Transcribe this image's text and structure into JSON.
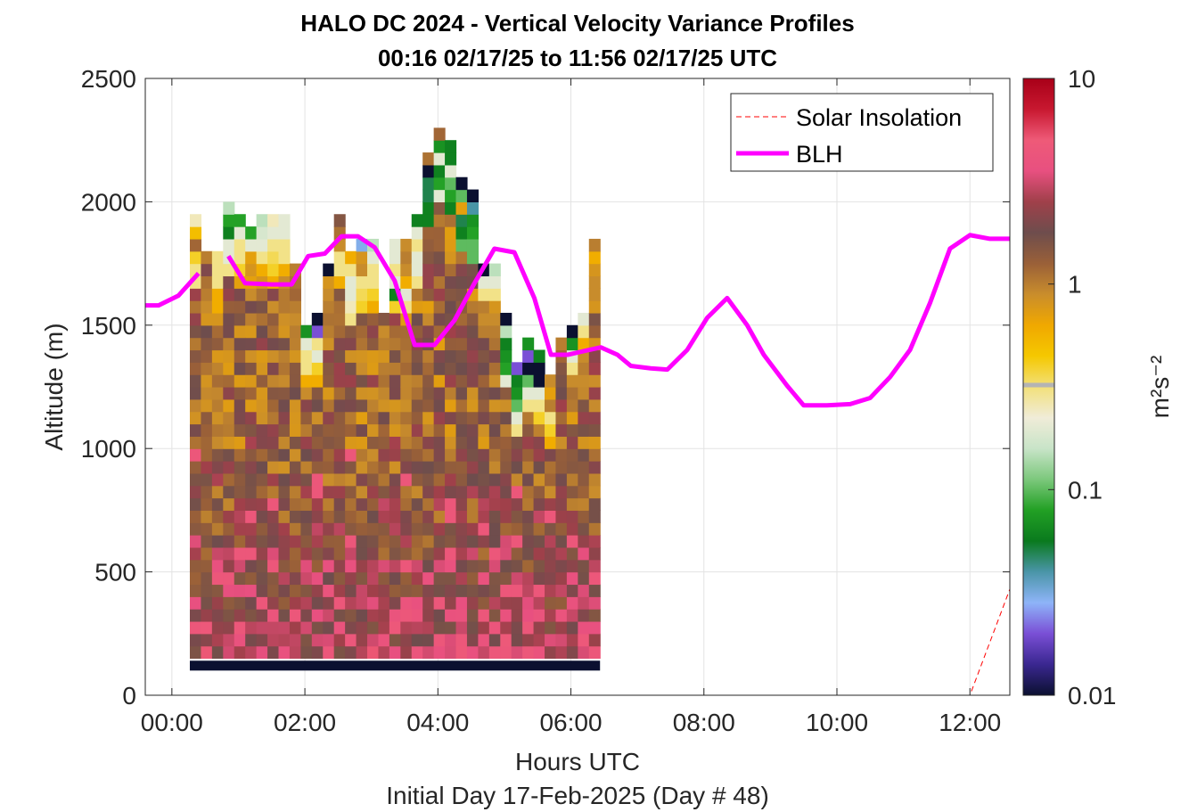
{
  "chart_data": {
    "type": "heatmap",
    "title": "HALO DC 2024 - Vertical Velocity Variance Profiles",
    "subtitle": "00:16 02/17/25 to 11:56 02/17/25  UTC",
    "xlabel": "Hours UTC",
    "xlabel2": "Initial Day 17-Feb-2025 (Day # 48)",
    "ylabel": "Altitude (m)",
    "colorbar_label": "m²s⁻²",
    "xlim": [
      -0.4,
      12.6
    ],
    "ylim": [
      0,
      2500
    ],
    "x_ticks": [
      0,
      2,
      4,
      6,
      8,
      10,
      12
    ],
    "x_tick_labels": [
      "00:00",
      "02:00",
      "04:00",
      "06:00",
      "08:00",
      "10:00",
      "12:00"
    ],
    "y_ticks": [
      0,
      500,
      1000,
      1500,
      2000,
      2500
    ],
    "y_tick_labels": [
      "0",
      "500",
      "1000",
      "1500",
      "2000",
      "2500"
    ],
    "colorbar": {
      "scale": "log",
      "range": [
        0.01,
        10
      ],
      "ticks": [
        0.01,
        0.1,
        1,
        10
      ],
      "tick_labels": [
        "0.01",
        "0.1",
        "1",
        "10"
      ],
      "stops": [
        "#0b1030",
        "#3a2790",
        "#7a4fd6",
        "#8eb4f8",
        "#4a95a8",
        "#0a7a1e",
        "#22a024",
        "#7cc87c",
        "#c8e4c8",
        "#f0ecd8",
        "#f2e07a",
        "#f5c800",
        "#f0a800",
        "#c98d2c",
        "#9a6038",
        "#6e4d4d",
        "#a0404a",
        "#e85080",
        "#ee5a78",
        "#c81830",
        "#a80018"
      ]
    },
    "legend": {
      "placement": "top-right",
      "entries": [
        {
          "label": "Solar Insolation",
          "color": "#ff0000",
          "style": "dashed"
        },
        {
          "label": "BLH",
          "color": "#ff00ff",
          "style": "solid"
        }
      ]
    },
    "grid": true,
    "heatmap": {
      "time_start": 0.27,
      "time_step": 0.1667,
      "altitude_step": 50,
      "ground_band_alt": [
        100,
        140
      ],
      "ground_band_value": 0.01,
      "columns": [
        {
          "top": 1930,
          "tops": [
            0.25,
            0.5,
            1.2,
            0.4,
            0.3,
            0.3
          ]
        },
        {
          "top": 1820,
          "tops": [
            1.0,
            2.0,
            1.1,
            1.0,
            0.9,
            0.8
          ]
        },
        {
          "top": 1820,
          "tops": [
            0.3,
            0.3,
            0.3,
            0.6,
            0.6,
            0.8
          ]
        },
        {
          "top": 2010,
          "tops": [
            0.15,
            0.08,
            0.06,
            0.2,
            0.2,
            0.3
          ]
        },
        {
          "top": 1930,
          "tops": [
            0.08,
            0.2,
            0.3,
            0.3,
            0.4,
            0.7
          ]
        },
        {
          "top": 1920,
          "tops": [
            0.08,
            0.2,
            0.7,
            0.8,
            0.7,
            0.9
          ]
        },
        {
          "top": 1930,
          "tops": [
            0.15,
            0.18,
            0.2,
            0.3,
            0.6,
            0.8
          ]
        },
        {
          "top": 1960,
          "tops": [
            0.25,
            0.2,
            0.3,
            0.35,
            0.4,
            0.6
          ]
        },
        {
          "top": 1930,
          "tops": [
            0.2,
            0.2,
            0.3,
            0.3,
            0.6,
            0.9
          ]
        },
        {
          "top": 1770,
          "tops": [
            1.0,
            1.1,
            1.2,
            1.0,
            0.9,
            1.0
          ]
        },
        {
          "top": 1480,
          "tops": [
            0.07,
            0.2,
            0.3,
            0.3,
            0.6,
            0.9
          ]
        },
        {
          "top": 1560,
          "tops": [
            0.01,
            0.02,
            0.3,
            0.2,
            0.4,
            0.6
          ]
        },
        {
          "top": 1760,
          "tops": [
            0.01,
            0.8,
            0.9,
            1.0,
            1.1,
            1.0
          ]
        },
        {
          "top": 1930,
          "tops": [
            1.5,
            1.1,
            0.9,
            0.3,
            0.3,
            0.6
          ]
        },
        {
          "top": 1800,
          "tops": [
            0.6,
            0.3,
            0.2,
            0.2,
            0.25,
            0.3
          ]
        },
        {
          "top": 1860,
          "tops": [
            0.03,
            0.8,
            0.9,
            0.3,
            0.35,
            0.4
          ]
        },
        {
          "top": 1860,
          "tops": [
            0.15,
            0.2,
            0.3,
            0.3,
            0.4,
            0.6
          ]
        },
        {
          "top": 1560,
          "tops": [
            1.5,
            0.9,
            1.0,
            0.8,
            1.0,
            1.1
          ]
        },
        {
          "top": 1860,
          "tops": [
            0.2,
            0.2,
            0.3,
            0.2,
            0.06,
            0.4
          ]
        },
        {
          "top": 1850,
          "tops": [
            0.9,
            1.0,
            0.9,
            0.6,
            0.2,
            0.3
          ]
        },
        {
          "top": 1940,
          "tops": [
            0.06,
            0.2,
            0.3,
            0.2,
            0.2,
            0.3
          ]
        },
        {
          "top": 2180,
          "tops": [
            1.1,
            0.01,
            0.05,
            0.05,
            0.06,
            0.06
          ]
        },
        {
          "top": 2290,
          "tops": [
            1.2,
            0.07,
            0.2,
            0.06,
            0.08,
            0.2
          ]
        },
        {
          "top": 2250,
          "tops": [
            0.06,
            0.06,
            0.2,
            0.1,
            0.08,
            0.06
          ]
        },
        {
          "top": 2100,
          "tops": [
            0.01,
            0.1,
            0.7,
            0.05,
            0.06,
            0.1
          ]
        },
        {
          "top": 2050,
          "tops": [
            0.01,
            0.04,
            0.07,
            0.08,
            0.1,
            0.1
          ]
        },
        {
          "top": 1760,
          "tops": [
            0.01,
            0.2,
            0.3,
            1.0,
            0.9,
            1.0
          ]
        },
        {
          "top": 1760,
          "tops": [
            0.15,
            0.2,
            0.3,
            0.8,
            0.9,
            1.0
          ]
        },
        {
          "top": 1540,
          "tops": [
            0.01,
            0.15,
            0.06,
            0.07,
            0.08,
            0.2
          ]
        },
        {
          "top": 1340,
          "tops": [
            0.02,
            0.06,
            0.07,
            0.1,
            0.2,
            0.3
          ]
        },
        {
          "top": 1430,
          "tops": [
            0.07,
            0.02,
            0.01,
            0.1,
            0.2,
            0.3
          ]
        },
        {
          "top": 1420,
          "tops": [
            0.06,
            0.01,
            0.01,
            0.2,
            0.3,
            0.4
          ]
        },
        {
          "top": 1290,
          "tops": [
            0.9,
            0.7,
            1.0,
            0.3,
            0.4,
            0.6
          ]
        },
        {
          "top": 1430,
          "tops": [
            1.0,
            1.2,
            1.5,
            1.6,
            1.8,
            2.5
          ]
        },
        {
          "top": 1480,
          "tops": [
            0.01,
            0.07,
            0.2,
            0.3,
            0.9,
            1.1
          ]
        },
        {
          "top": 1570,
          "tops": [
            0.2,
            0.3,
            0.6,
            0.9,
            1.0,
            0.9
          ]
        },
        {
          "top": 1860,
          "tops": [
            1.0,
            0.6,
            0.8,
            0.9,
            0.9,
            0.8
          ]
        }
      ]
    },
    "blh_series": {
      "name": "BLH",
      "x": [
        -0.4,
        -0.2,
        0.1,
        0.4,
        0.55,
        0.85,
        1.1,
        1.5,
        1.8,
        2.05,
        2.3,
        2.55,
        2.8,
        3.05,
        3.35,
        3.65,
        3.95,
        4.25,
        4.55,
        4.85,
        5.15,
        5.45,
        5.7,
        5.95,
        6.2,
        6.45,
        6.7,
        6.9,
        7.2,
        7.45,
        7.75,
        8.05,
        8.35,
        8.65,
        8.9,
        9.25,
        9.5,
        9.85,
        10.2,
        10.5,
        10.8,
        11.1,
        11.4,
        11.7,
        12.0,
        12.3,
        12.6
      ],
      "y": [
        1580,
        1580,
        1620,
        1710,
        null,
        1780,
        1670,
        1665,
        1665,
        1780,
        1790,
        1860,
        1860,
        1815,
        1680,
        1420,
        1420,
        1520,
        1670,
        1810,
        1795,
        1610,
        1380,
        1380,
        1395,
        1410,
        1380,
        1335,
        1325,
        1320,
        1400,
        1530,
        1610,
        1500,
        1380,
        1255,
        1175,
        1175,
        1180,
        1205,
        1290,
        1400,
        1590,
        1810,
        1865,
        1850,
        1850
      ]
    },
    "solar_series": {
      "name": "Solar Insolation",
      "x": [
        -0.4,
        12.0,
        12.6
      ],
      "y": [
        0,
        0,
        430
      ]
    }
  }
}
